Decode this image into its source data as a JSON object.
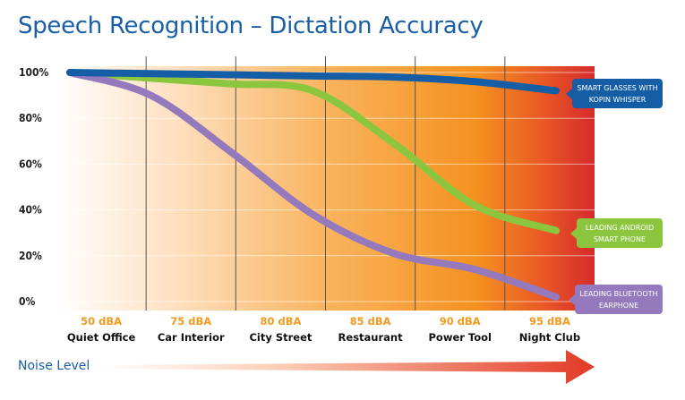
{
  "title": "Speech Recognition – Dictation Accuracy",
  "noise_label": "Noise Level",
  "colors": {
    "title": "#1a5fa6",
    "glasses": "#155ea6",
    "android": "#8cc63f",
    "bluetooth": "#9479bd",
    "db_text": "#f39a1f",
    "arrow": "#e84a2a"
  },
  "chart_data": {
    "type": "line",
    "title": "Speech Recognition – Dictation Accuracy",
    "xlabel": "Noise Level",
    "ylabel": "",
    "ylim": [
      0,
      100
    ],
    "y_ticks": [
      "0%",
      "20%",
      "40%",
      "60%",
      "80%",
      "100%"
    ],
    "y_tick_values": [
      0,
      20,
      40,
      60,
      80,
      100
    ],
    "categories": [
      "50 dBA",
      "75 dBA",
      "80 dBA",
      "85 dBA",
      "90 dBA",
      "95 dBA"
    ],
    "category_names": [
      "Quiet Office",
      "Car Interior",
      "City Street",
      "Restaurant",
      "Power Tool",
      "Night Club"
    ],
    "x": [
      0,
      1,
      2,
      3,
      4,
      5,
      6
    ],
    "grid": true,
    "background": "gradient white to orange to red (increasing noise)",
    "series": [
      {
        "name": "SMART GLASSES WITH KOPIN WHISPER",
        "label_lines": [
          "SMART GLASSES WITH",
          "KOPIN WHISPER"
        ],
        "color": "#155ea6",
        "values": [
          100,
          99.5,
          99,
          98.5,
          98,
          96,
          92
        ]
      },
      {
        "name": "LEADING ANDROID SMART PHONE",
        "label_lines": [
          "LEADING ANDROID",
          "SMART PHONE"
        ],
        "color": "#8cc63f",
        "values": [
          100,
          97.5,
          95,
          92,
          69,
          42,
          31
        ]
      },
      {
        "name": "LEADING BLUETOOTH EARPHONE",
        "label_lines": [
          "LEADING BLUETOOTH",
          "EARPHONE"
        ],
        "color": "#9479bd",
        "values": [
          100,
          90,
          65,
          38,
          21,
          14,
          2
        ]
      }
    ]
  }
}
